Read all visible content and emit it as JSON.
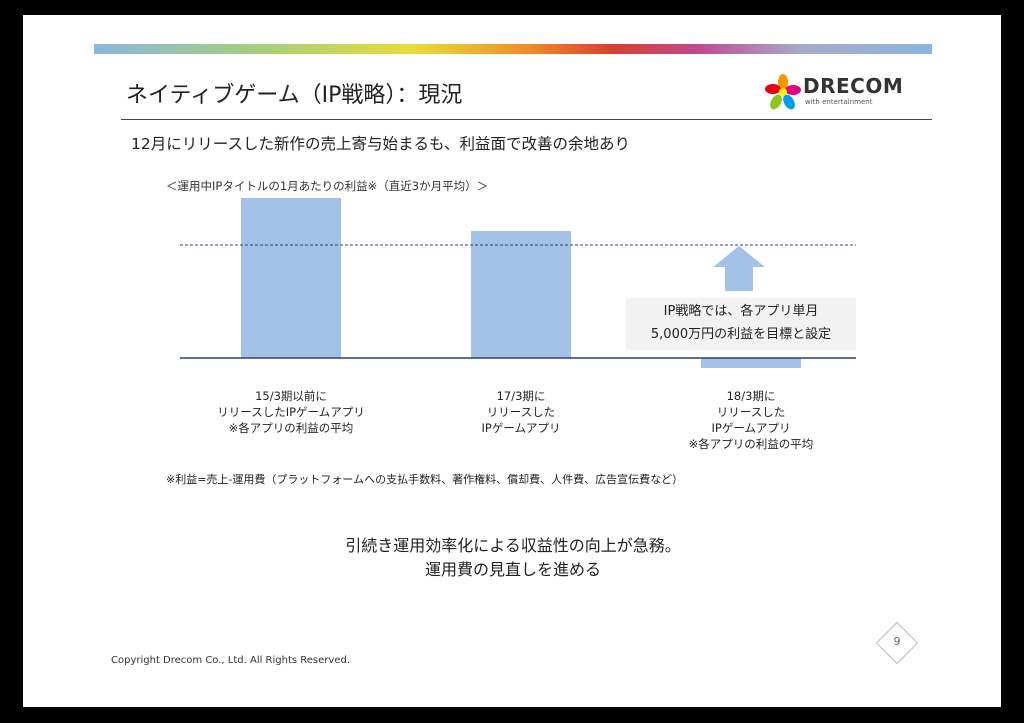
{
  "header": {
    "title": "ネイティブゲーム（IP戦略）：現況",
    "subtitle": "12月にリリースした新作の売上寄与始まるも、利益面で改善の余地あり"
  },
  "logo": {
    "text": "DRECOM",
    "tagline": "with entertainment"
  },
  "chart_data": {
    "type": "bar",
    "title": "＜運用中IPタイトルの1月あたりの利益※（直近3か月平均）＞",
    "categories": [
      [
        "15/3期以前に",
        "リリースしたIPゲームアプリ",
        "※各アプリの利益の平均"
      ],
      [
        "17/3期に",
        "リリースした",
        "IPゲームアプリ"
      ],
      [
        "18/3期に",
        "リリースした",
        "IPゲームアプリ",
        "※各アプリの利益の平均"
      ]
    ],
    "values": [
      160,
      127,
      -10
    ],
    "target_line": 113,
    "bar_color": "#a4c2e8",
    "baseline_color": "#2e3f6a",
    "annotation": [
      "IP戦略では、各アプリ単月",
      "5,000万円の利益を目標と設定"
    ],
    "arrow_color": "#a4c2e8"
  },
  "footnote": "※利益=売上-運用費（プラットフォームへの支払手数料、著作権料、償却費、人件費、広告宣伝費など）",
  "conclusion": [
    "引続き運用効率化による収益性の向上が急務。",
    "運用費の見直しを進める"
  ],
  "footer": {
    "copyright": "Copyright Drecom Co., Ltd. All Rights Reserved.",
    "page_number": "9"
  }
}
